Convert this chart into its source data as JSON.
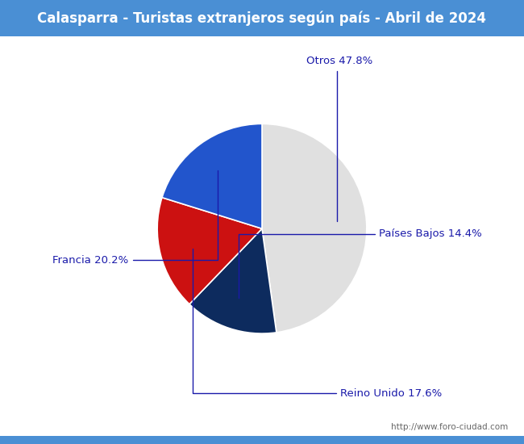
{
  "title": "Calasparra - Turistas extranjeros según país - Abril de 2024",
  "title_bg_color": "#4a8fd4",
  "title_text_color": "#ffffff",
  "slices": [
    {
      "label": "Otros",
      "pct": 47.8,
      "color": "#e0e0e0"
    },
    {
      "label": "Países Bajos",
      "pct": 14.4,
      "color": "#0d2b5e"
    },
    {
      "label": "Reino Unido",
      "pct": 17.6,
      "color": "#cc1111"
    },
    {
      "label": "Francia",
      "pct": 20.2,
      "color": "#2255cc"
    }
  ],
  "annotation_color": "#1a1aaa",
  "watermark": "http://www.foro-ciudad.com",
  "border_color": "#4a8fd4",
  "startangle": 90
}
